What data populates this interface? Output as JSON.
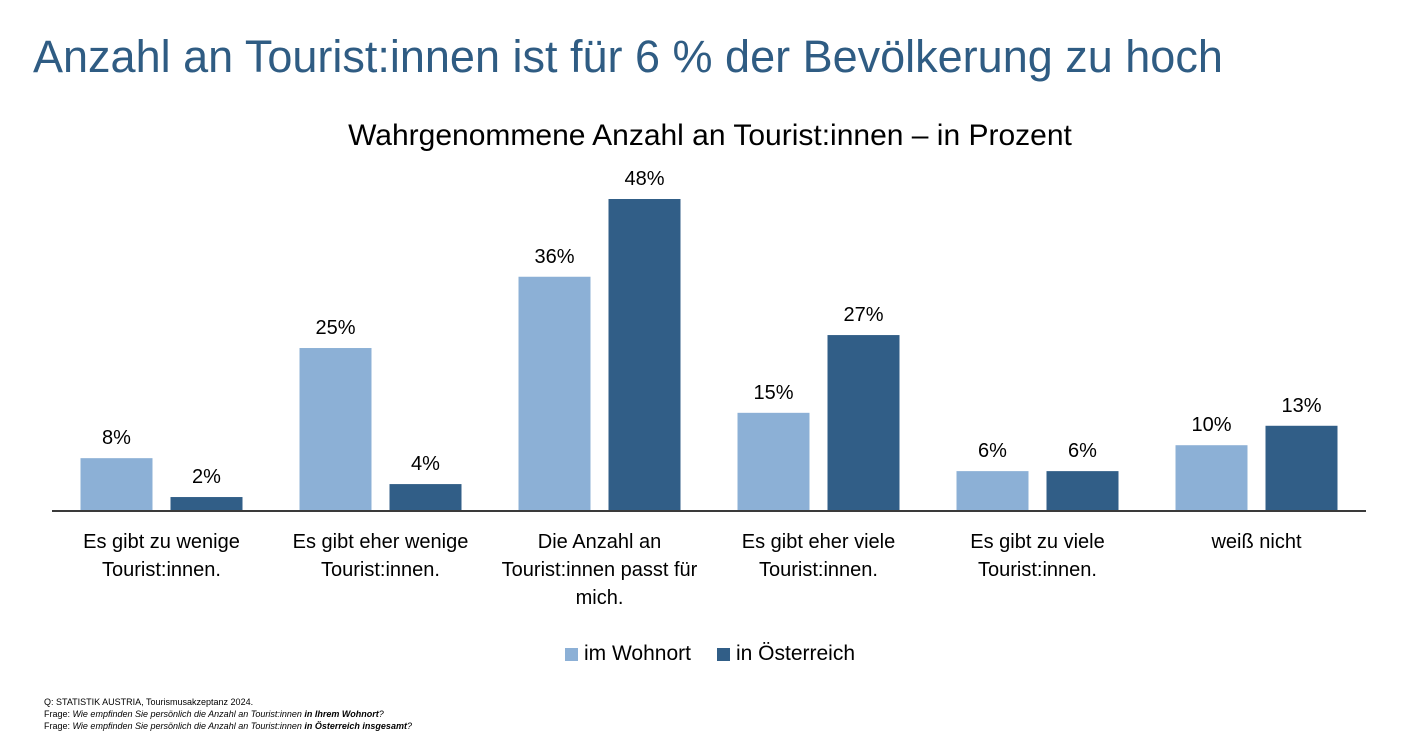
{
  "slide_title": "Anzahl an Tourist:innen ist für 6 % der Bevölkerung zu hoch",
  "colors": {
    "title": "#2f5c83",
    "series_wohnort": "#8cb0d6",
    "series_oesterreich": "#315e87",
    "axis": "#3a3a3a"
  },
  "chart_data": {
    "type": "bar",
    "title": "Wahrgenommene Anzahl an Tourist:innen – in Prozent",
    "categories": [
      "Es gibt zu wenige Tourist:innen.",
      "Es gibt eher wenige Tourist:innen.",
      "Die Anzahl an Tourist:innen passt für mich.",
      "Es gibt eher viele Tourist:innen.",
      "Es gibt zu viele Tourist:innen.",
      "weiß nicht"
    ],
    "series": [
      {
        "name": "im Wohnort",
        "color": "#8cb0d6",
        "values": [
          8,
          25,
          36,
          15,
          6,
          10
        ]
      },
      {
        "name": "in Österreich",
        "color": "#315e87",
        "values": [
          2,
          4,
          48,
          27,
          6,
          13
        ]
      }
    ],
    "value_suffix": "%",
    "ylim": [
      0,
      48
    ],
    "legend_position": "bottom",
    "grid": false
  },
  "footnotes": {
    "source": "Q: STATISTIK AUSTRIA, Tourismusakzeptanz 2024.",
    "q1_prefix": "Frage: ",
    "q1_text": "Wie empfinden Sie persönlich die Anzahl an Tourist:innen ",
    "q1_bold": "in Ihrem Wohnort",
    "q1_end": "?",
    "q2_prefix": "Frage: ",
    "q2_text": "Wie empfinden Sie persönlich die Anzahl an Tourist:innen ",
    "q2_bold": "in Österreich insgesamt",
    "q2_end": "?"
  }
}
